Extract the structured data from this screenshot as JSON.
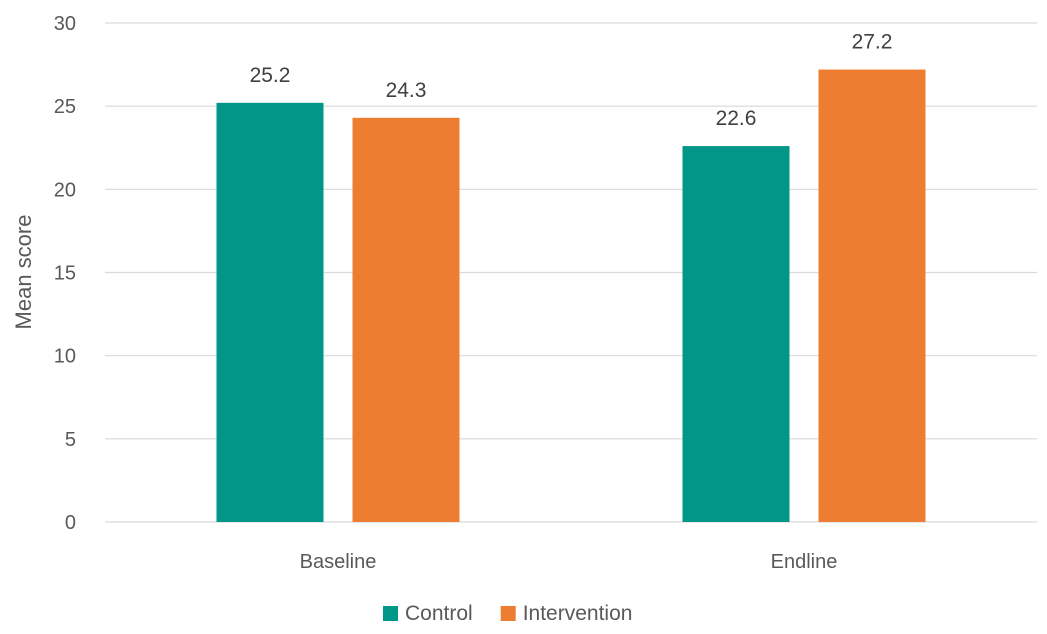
{
  "chart_data": {
    "type": "bar",
    "title": "",
    "xlabel": "",
    "ylabel": "Mean score",
    "ylim": [
      0,
      30
    ],
    "yticks": [
      0,
      5,
      10,
      15,
      20,
      25,
      30
    ],
    "categories": [
      "Baseline",
      "Endline"
    ],
    "series": [
      {
        "name": "Control",
        "values": [
          25.2,
          22.6
        ],
        "color": "#009688"
      },
      {
        "name": "Intervention",
        "values": [
          24.3,
          27.2
        ],
        "color": "#ED7D31"
      }
    ],
    "data_labels": true,
    "grid": true,
    "legend": "bottom-center"
  }
}
